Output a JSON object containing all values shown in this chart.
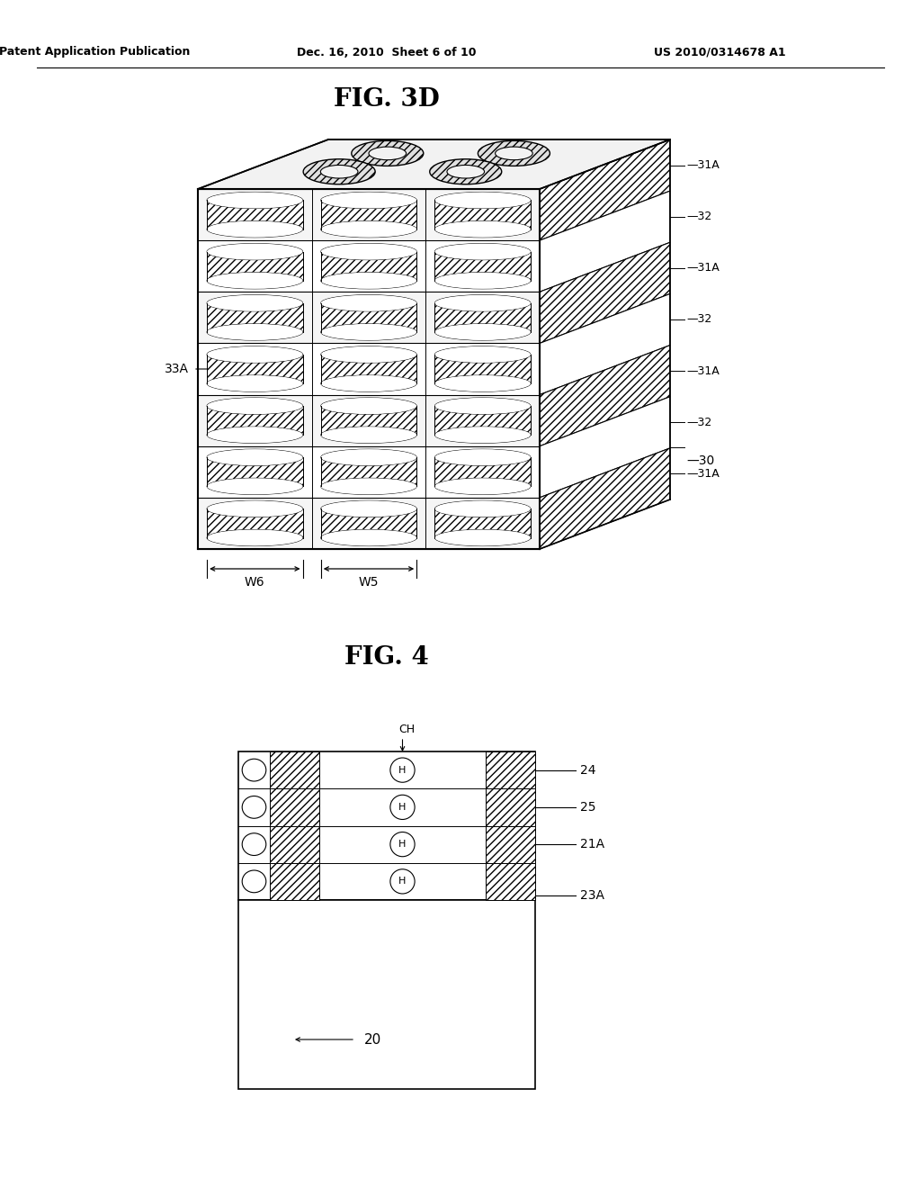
{
  "background_color": "#ffffff",
  "header_left": "Patent Application Publication",
  "header_mid": "Dec. 16, 2010  Sheet 6 of 10",
  "header_right": "US 2010/0314678 A1",
  "fig3d_title": "FIG. 3D",
  "fig4_title": "FIG. 4",
  "line_color": "#000000",
  "label_33A": "33A",
  "label_30": "30",
  "label_31A_list": [
    "31A",
    "32",
    "31A",
    "32",
    "31A",
    "32",
    "31A"
  ],
  "label_W6": "W6",
  "label_W5": "W5",
  "label_24": "24",
  "label_25": "25",
  "label_21A": "21A",
  "label_23A": "23A",
  "label_20": "20",
  "label_CH": "CH"
}
